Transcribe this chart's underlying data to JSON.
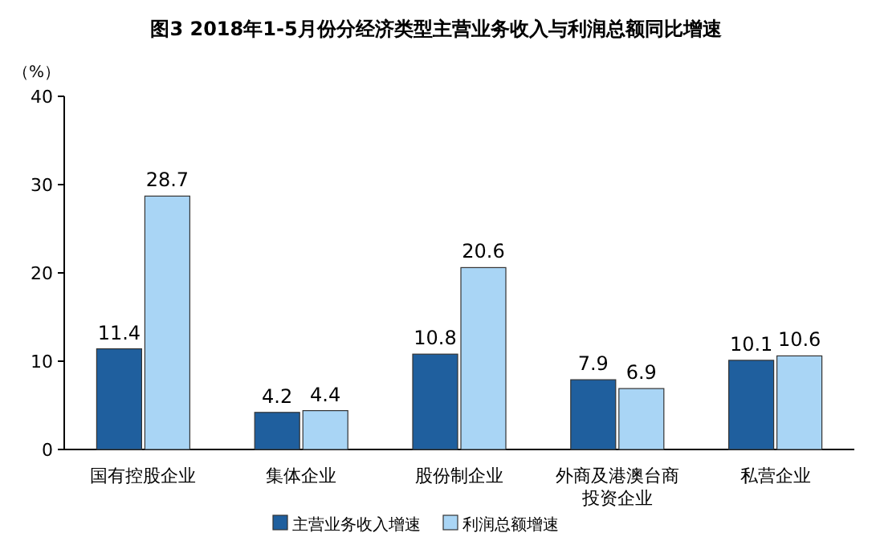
{
  "chart_data": {
    "type": "bar",
    "title": "图3 2018年1-5月份分经济类型主营业务收入与利润总额同比增速",
    "ylabel": "（%）",
    "categories": [
      "国有控股企业",
      "集体企业",
      "股份制企业",
      "外商及港澳台商投资企业",
      "私营企业"
    ],
    "series": [
      {
        "name": "主营业务收入增速",
        "color": "#1f5f9e",
        "values": [
          11.4,
          4.2,
          10.8,
          7.9,
          10.1
        ]
      },
      {
        "name": "利润总额增速",
        "color": "#a9d5f5",
        "values": [
          28.7,
          4.4,
          20.6,
          6.9,
          10.6
        ]
      }
    ],
    "ylim": [
      0,
      40
    ],
    "yticks": [
      0,
      10,
      20,
      30,
      40
    ],
    "data_labels": true,
    "legend": "bottom",
    "grid": false
  }
}
